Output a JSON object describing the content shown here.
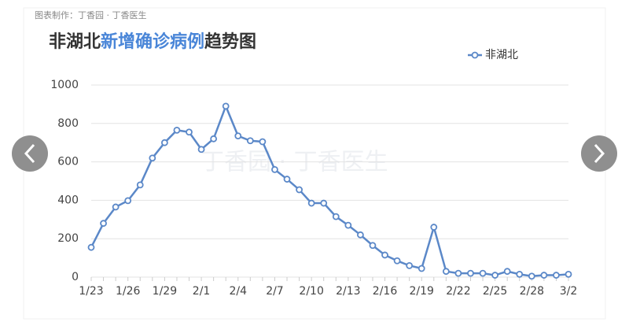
{
  "source": "图表制作：丁香园 · 丁香医生",
  "watermark": "丁香园 · 丁香医生",
  "chart_data": {
    "type": "line",
    "title": [
      "非湖北",
      "新增确诊病例",
      "趋势图"
    ],
    "title_color": "#333333",
    "title_highlight_color": "#4a86d8",
    "categories": [
      "1/23",
      null,
      null,
      "1/26",
      null,
      null,
      "1/29",
      null,
      null,
      "2/1",
      null,
      null,
      "2/4",
      null,
      null,
      "2/7",
      null,
      null,
      "2/10",
      null,
      null,
      "2/13",
      null,
      null,
      "2/16",
      null,
      null,
      "2/19",
      null,
      null,
      "2/22",
      null,
      null,
      "2/25",
      null,
      null,
      "2/28",
      null,
      null,
      "3/2"
    ],
    "series": [
      {
        "name": "非湖北",
        "color": "#5b88c8",
        "values": [
          155,
          280,
          365,
          398,
          480,
          620,
          700,
          765,
          755,
          665,
          720,
          890,
          735,
          710,
          705,
          560,
          510,
          455,
          385,
          385,
          315,
          270,
          220,
          165,
          115,
          85,
          60,
          45,
          260,
          30,
          20,
          20,
          20,
          10,
          30,
          15,
          5,
          10,
          10,
          15
        ]
      }
    ],
    "ylim": [
      0,
      1000
    ],
    "yticks": [
      0,
      200,
      400,
      600,
      800,
      1000
    ],
    "grid": true,
    "legend": "top-right"
  }
}
